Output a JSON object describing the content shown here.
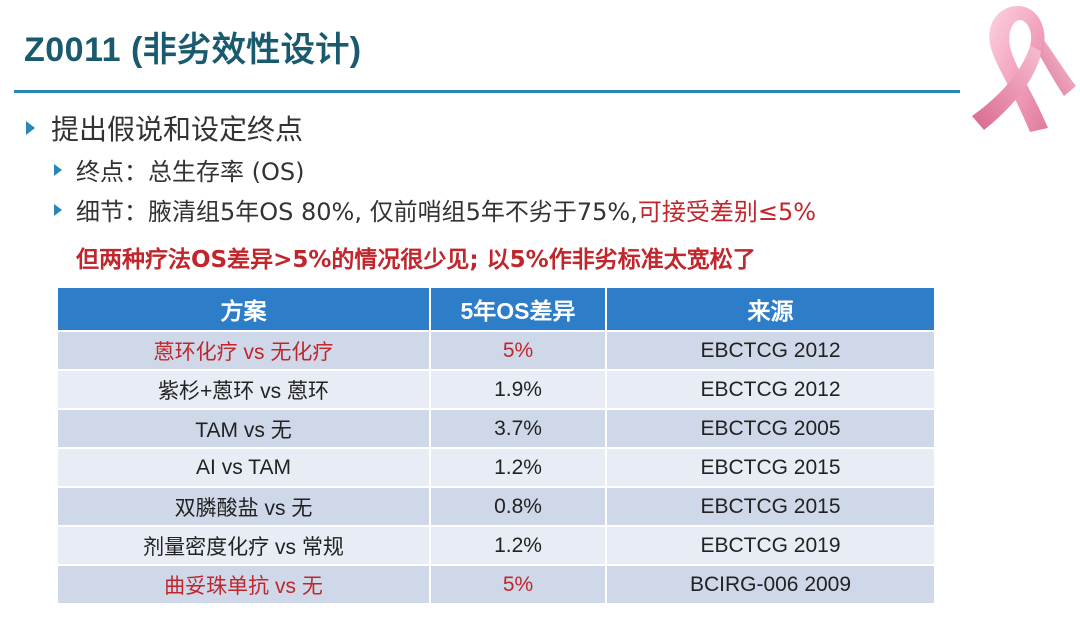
{
  "slide": {
    "title": "Z0011 (非劣效性设计)",
    "bullets": {
      "main": "提出假说和设定终点",
      "endpoint": "终点：总生存率 (OS)",
      "detail_prefix": "细节：腋清组5年OS 80%, 仅前哨组5年不劣于75%, ",
      "detail_highlight": "可接受差别≤5%"
    },
    "warning": "但两种疗法OS差异>5%的情况很少见; 以5%作非劣标准太宽松了"
  },
  "table": {
    "headers": [
      "方案",
      "5年OS差异",
      "来源"
    ],
    "rows": [
      {
        "scheme": "蒽环化疗 vs 无化疗",
        "diff": "5%",
        "source": "EBCTCG 2012",
        "highlight": true
      },
      {
        "scheme": "紫杉+蒽环 vs 蒽环",
        "diff": "1.9%",
        "source": "EBCTCG 2012",
        "highlight": false
      },
      {
        "scheme": "TAM vs 无",
        "diff": "3.7%",
        "source": "EBCTCG 2005",
        "highlight": false
      },
      {
        "scheme": "AI vs TAM",
        "diff": "1.2%",
        "source": "EBCTCG 2015",
        "highlight": false
      },
      {
        "scheme": "双膦酸盐 vs 无",
        "diff": "0.8%",
        "source": "EBCTCG 2015",
        "highlight": false
      },
      {
        "scheme": "剂量密度化疗 vs 常规",
        "diff": "1.2%",
        "source": "EBCTCG 2019",
        "highlight": false
      },
      {
        "scheme": "曲妥珠单抗 vs 无",
        "diff": "5%",
        "source": "BCIRG-006 2009",
        "highlight": true
      }
    ]
  },
  "colors": {
    "title": "#1a5a6e",
    "accent": "#2a86b8",
    "header_bg": "#2e7dc9",
    "highlight": "#c0262c",
    "ribbon": "#f2a3bd"
  },
  "icons": {
    "ribbon": "pink-ribbon-icon",
    "bullet": "triangle-bullet-icon"
  }
}
